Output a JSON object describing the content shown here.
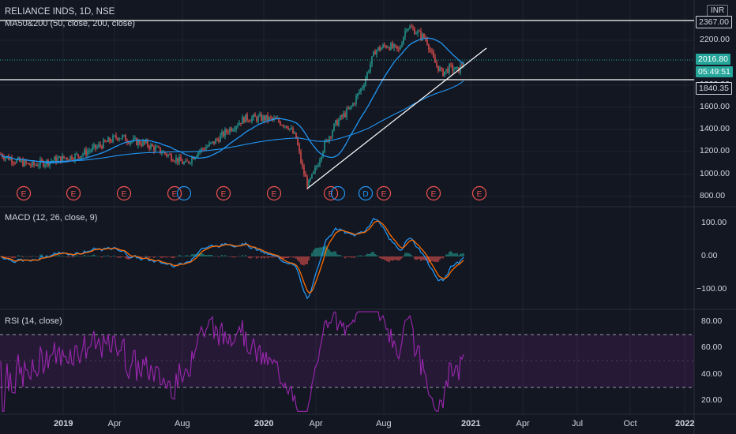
{
  "symbol_line": "RELIANCE INDS, 1D, NSE",
  "currency": "INR",
  "indicators": {
    "ma": "MA50&200 (50, close, 200, close)",
    "macd": "MACD (12, 26, close, 9)",
    "rsi": "RSI (14, close)"
  },
  "price_labels": {
    "high_line": "2367.00",
    "last_price": "2016.80",
    "countdown": "05:49:51",
    "low_line": "1840.35"
  },
  "price_axis": [
    "2200.00",
    "1800.00",
    "1600.00",
    "1400.00",
    "1200.00",
    "1000.00",
    "800.00"
  ],
  "macd_axis": [
    "100.00",
    "0.00",
    "−100.00"
  ],
  "rsi_axis": [
    "80.00",
    "60.00",
    "40.00",
    "20.00"
  ],
  "time_axis": [
    "2019",
    "Apr",
    "Aug",
    "2020",
    "Apr",
    "Aug",
    "2021",
    "Apr",
    "Jul",
    "Oct",
    "2022"
  ],
  "earnings_markers": [
    "E",
    "E",
    "E",
    "E",
    "E",
    "E",
    "E",
    "E",
    "E",
    "E",
    "E"
  ],
  "dividend_marker": "D",
  "colors": {
    "background": "#131722",
    "up": "#26a69a",
    "down": "#ef5350",
    "ma": "#2196f3",
    "rsi": "#9c27b0",
    "last_price_tag": "#26a69a",
    "macd_signal": "#ff6d00"
  },
  "chart_data": [
    {
      "type": "candlestick",
      "title": "RELIANCE INDS, 1D, NSE",
      "ylim": [
        750,
        2450
      ],
      "grid": true,
      "x": [
        "2019-01",
        "2019-04",
        "2019-08",
        "2020-01",
        "2020-03",
        "2020-04",
        "2020-08",
        "2020-09",
        "2020-10",
        "2020-11",
        "2020-12"
      ],
      "series": [
        {
          "name": "close",
          "values": [
            1130,
            1340,
            1180,
            1530,
            900,
            1250,
            2100,
            2300,
            2250,
            1900,
            2016.8
          ]
        },
        {
          "name": "MA50",
          "values": [
            1100,
            1300,
            1200,
            1500,
            1300,
            1150,
            1700,
            2100,
            2200,
            2150,
            2040
          ]
        },
        {
          "name": "MA200",
          "values": [
            1050,
            1150,
            1200,
            1380,
            1420,
            1400,
            1500,
            1620,
            1720,
            1790,
            1830
          ]
        }
      ],
      "lines": {
        "horizontal": [
          2367.0,
          1840.35
        ],
        "trendline": "from 2020-03 low to 2021-01"
      }
    },
    {
      "type": "line",
      "title": "MACD (12, 26, close, 9)",
      "ylim": [
        -130,
        130
      ],
      "x": [
        "2019-01",
        "2019-04",
        "2019-08",
        "2020-01",
        "2020-03",
        "2020-04",
        "2020-08",
        "2020-09",
        "2020-10",
        "2020-11",
        "2020-12"
      ],
      "series": [
        {
          "name": "MACD",
          "values": [
            -15,
            20,
            -20,
            30,
            -110,
            40,
            80,
            100,
            20,
            -60,
            -20
          ]
        },
        {
          "name": "Signal",
          "values": [
            -10,
            15,
            -15,
            25,
            -80,
            20,
            75,
            85,
            30,
            -40,
            -25
          ]
        }
      ]
    },
    {
      "type": "line",
      "title": "RSI (14, close)",
      "ylim": [
        15,
        85
      ],
      "x": [
        "2019-01",
        "2019-04",
        "2019-08",
        "2020-01",
        "2020-03",
        "2020-04",
        "2020-08",
        "2020-09",
        "2020-10",
        "2020-11",
        "2020-12"
      ],
      "series": [
        {
          "name": "RSI",
          "values": [
            40,
            75,
            25,
            72,
            20,
            65,
            78,
            80,
            50,
            25,
            55
          ]
        }
      ],
      "bands": [
        70,
        30
      ]
    }
  ]
}
